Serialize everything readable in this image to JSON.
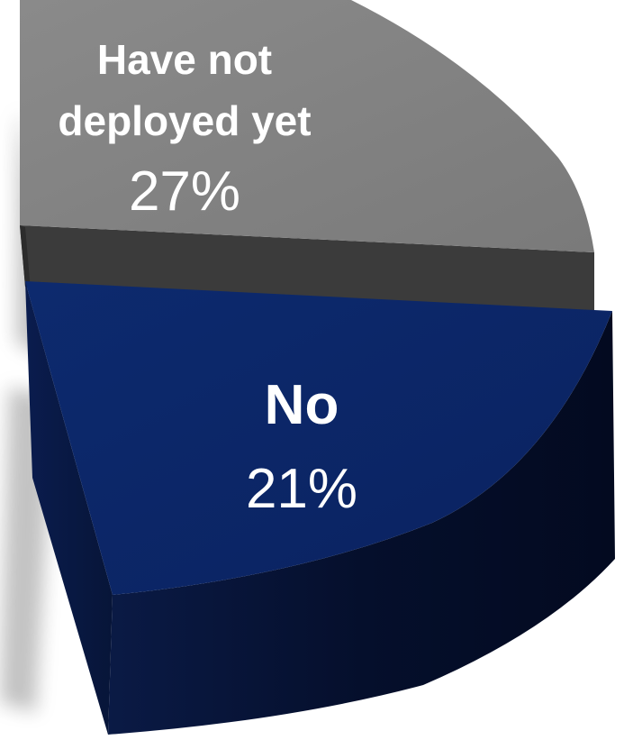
{
  "chart_data": {
    "type": "pie",
    "style": "3d-exploded",
    "slices": [
      {
        "label_lines": [
          "Have not",
          "deployed yet"
        ],
        "value_label": "27%",
        "value": 27,
        "color": "#808080",
        "side_color": "#3a3a3a"
      },
      {
        "label_lines": [
          "No"
        ],
        "value_label": "21%",
        "value": 21,
        "color": "#0b2766",
        "side_color": "#061433"
      }
    ]
  }
}
